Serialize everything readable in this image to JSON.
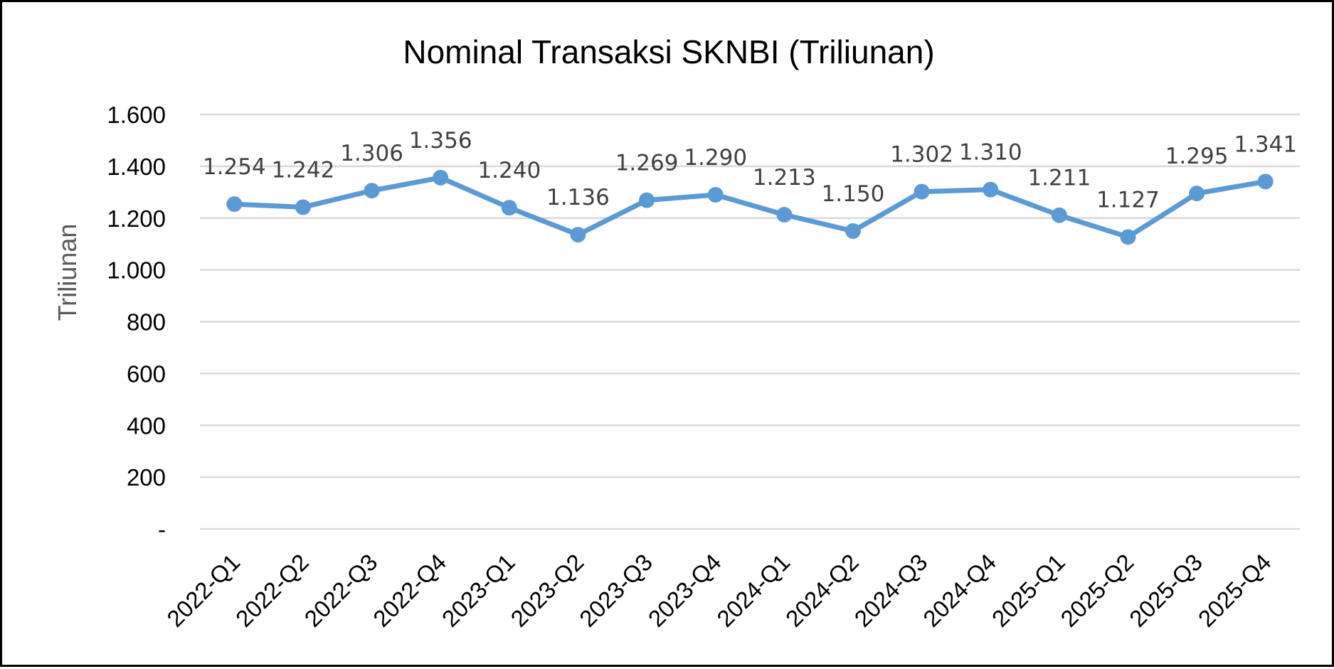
{
  "chart_data": {
    "type": "line",
    "title": "Nominal Transaksi SKNBI (Triliunan)",
    "xlabel": "",
    "ylabel": "Triliunan",
    "categories": [
      "2022-Q1",
      "2022-Q2",
      "2022-Q3",
      "2022-Q4",
      "2023-Q1",
      "2023-Q2",
      "2023-Q3",
      "2023-Q4",
      "2024-Q1",
      "2024-Q2",
      "2024-Q3",
      "2024-Q4",
      "2025-Q1",
      "2025-Q2",
      "2025-Q3",
      "2025-Q4"
    ],
    "values": [
      1254,
      1242,
      1306,
      1356,
      1240,
      1136,
      1269,
      1290,
      1213,
      1150,
      1302,
      1310,
      1211,
      1127,
      1295,
      1341
    ],
    "data_labels": [
      "1.254",
      "1.242",
      "1.306",
      "1.356",
      "1.240",
      "1.136",
      "1.269",
      "1.290",
      "1.213",
      "1.150",
      "1.302",
      "1.310",
      "1.211",
      "1.127",
      "1.295",
      "1.341"
    ],
    "ylim": [
      0,
      1600
    ],
    "y_ticks": [
      0,
      200,
      400,
      600,
      800,
      1000,
      1200,
      1400,
      1600
    ],
    "y_tick_labels": [
      "-",
      "200",
      "400",
      "600",
      "800",
      "1.000",
      "1.200",
      "1.400",
      "1.600"
    ],
    "grid": true,
    "legend": "none",
    "series_color": "#5b9bd5"
  }
}
